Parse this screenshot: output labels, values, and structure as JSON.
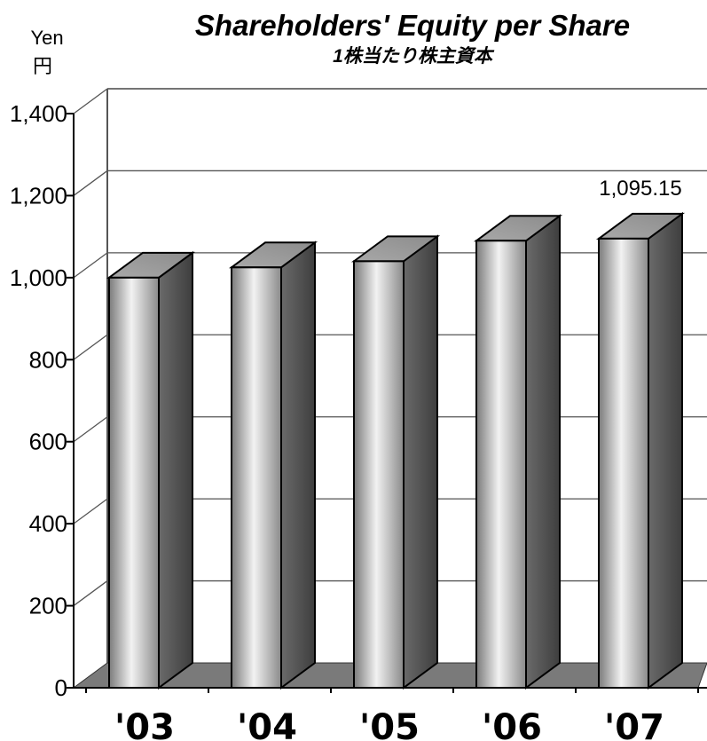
{
  "chart_data": {
    "type": "bar",
    "title": "Shareholders' Equity per Share",
    "subtitle": "1株当たり株主資本",
    "yunit_en": "Yen",
    "yunit_ja": "円",
    "categories": [
      "'03",
      "'04",
      "'05",
      "'06",
      "'07"
    ],
    "values": [
      1000,
      1025,
      1040,
      1090,
      1095.15
    ],
    "ylim": [
      0,
      1400
    ],
    "yticks": [
      "0",
      "200",
      "400",
      "600",
      "800",
      "1,000",
      "1,200",
      "1,400"
    ],
    "data_labels": [
      "",
      "",
      "",
      "",
      "1,095.15"
    ],
    "grid": true,
    "style": "3d",
    "colors": {
      "bar_front": "#c8c8c8",
      "bar_side": "#555555",
      "floor": "#7a7a7a",
      "grid": "#555555"
    }
  }
}
